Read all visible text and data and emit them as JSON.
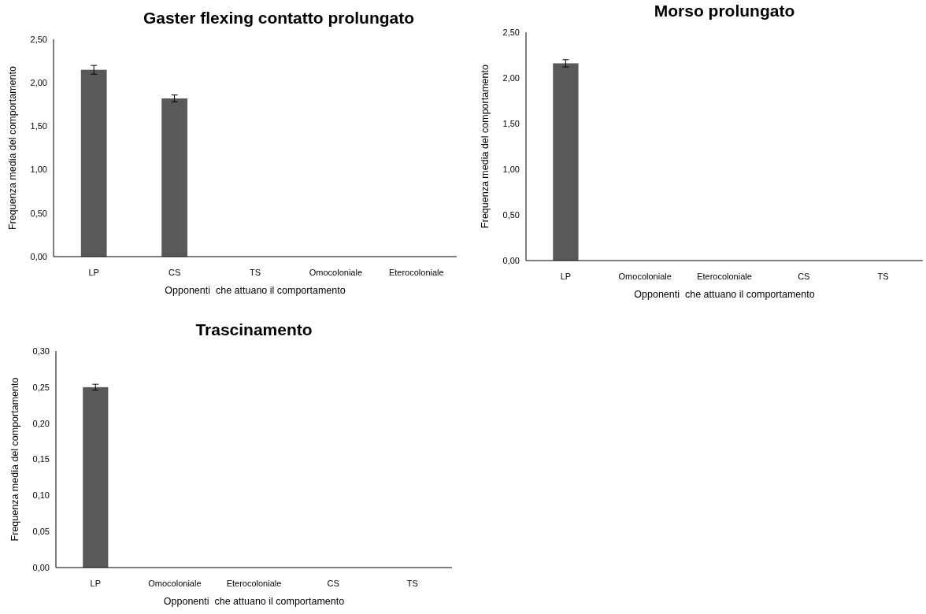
{
  "chart_data": [
    {
      "type": "bar",
      "title": "Gaster flexing contatto prolungato",
      "xlabel": "Opponenti  che attuano il comportamento",
      "ylabel": "Frequenza media del comportamento",
      "categories": [
        "LP",
        "CS",
        "TS",
        "Omocoloniale",
        "Eterocoloniale"
      ],
      "values": [
        2.15,
        1.82,
        0,
        0,
        0
      ],
      "errors": [
        0.05,
        0.04,
        null,
        null,
        null
      ],
      "color": "#595959",
      "ylim": [
        0,
        2.5
      ],
      "yticks": [
        {
          "value": 0,
          "label": "0,00"
        },
        {
          "value": 0.5,
          "label": "0,50"
        },
        {
          "value": 1,
          "label": "1,00"
        },
        {
          "value": 1.5,
          "label": "1,50"
        },
        {
          "value": 2,
          "label": "2,00"
        },
        {
          "value": 2.5,
          "label": "2,50"
        }
      ]
    },
    {
      "type": "bar",
      "title": "Morso prolungato",
      "xlabel": "Opponenti  che attuano il comportamento",
      "ylabel": "Frequenza media del comportamento",
      "categories": [
        "LP",
        "Omocoloniale",
        "Eterocoloniale",
        "CS",
        "TS"
      ],
      "values": [
        2.16,
        0,
        0,
        0,
        0
      ],
      "errors": [
        0.04,
        null,
        null,
        null,
        null
      ],
      "color": "#595959",
      "ylim": [
        0,
        2.5
      ],
      "yticks": [
        {
          "value": 0,
          "label": "0,00"
        },
        {
          "value": 0.5,
          "label": "0,50"
        },
        {
          "value": 1,
          "label": "1,00"
        },
        {
          "value": 1.5,
          "label": "1,50"
        },
        {
          "value": 2,
          "label": "2,00"
        },
        {
          "value": 2.5,
          "label": "2,50"
        }
      ]
    },
    {
      "type": "bar",
      "title": "Trascinamento",
      "xlabel": "Opponenti  che attuano il comportamento",
      "ylabel": "Frequenza media del comportamento",
      "categories": [
        "LP",
        "Omocoloniale",
        "Eterocoloniale",
        "CS",
        "TS"
      ],
      "values": [
        0.25,
        0,
        0,
        0,
        0
      ],
      "errors": [
        0.004,
        null,
        null,
        null,
        null
      ],
      "color": "#595959",
      "ylim": [
        0,
        0.3
      ],
      "yticks": [
        {
          "value": 0,
          "label": "0,00"
        },
        {
          "value": 0.05,
          "label": "0,05"
        },
        {
          "value": 0.1,
          "label": "0,10"
        },
        {
          "value": 0.15,
          "label": "0,15"
        },
        {
          "value": 0.2,
          "label": "0,20"
        },
        {
          "value": 0.25,
          "label": "0,25"
        },
        {
          "value": 0.3,
          "label": "0,30"
        }
      ]
    }
  ]
}
